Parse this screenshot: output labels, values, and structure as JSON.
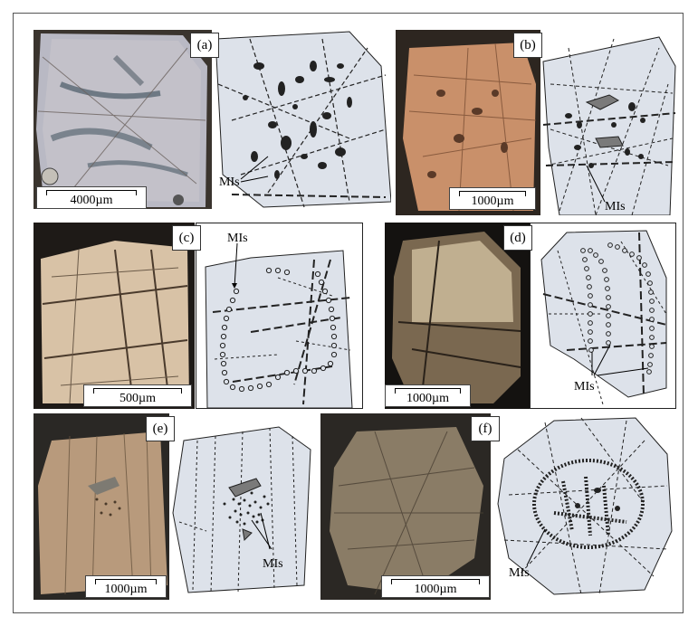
{
  "panels": [
    {
      "id": "a",
      "label": "(a)",
      "scale": "4000µm",
      "annotation": "MIs"
    },
    {
      "id": "b",
      "label": "(b)",
      "scale": "1000µm",
      "annotation": "MIs"
    },
    {
      "id": "c",
      "label": "(c)",
      "scale": "500µm",
      "annotation": "MIs"
    },
    {
      "id": "d",
      "label": "(d)",
      "scale": "1000µm",
      "annotation": "MIs"
    },
    {
      "id": "e",
      "label": "(e)",
      "scale": "1000µm",
      "annotation": "MIs"
    },
    {
      "id": "f",
      "label": "(f)",
      "scale": "1000µm",
      "annotation": "MIs"
    }
  ],
  "colors": {
    "crystal_sketch": "#dde2ea",
    "inclusion": "#222222",
    "matrix_dark": "#1e1a17"
  }
}
